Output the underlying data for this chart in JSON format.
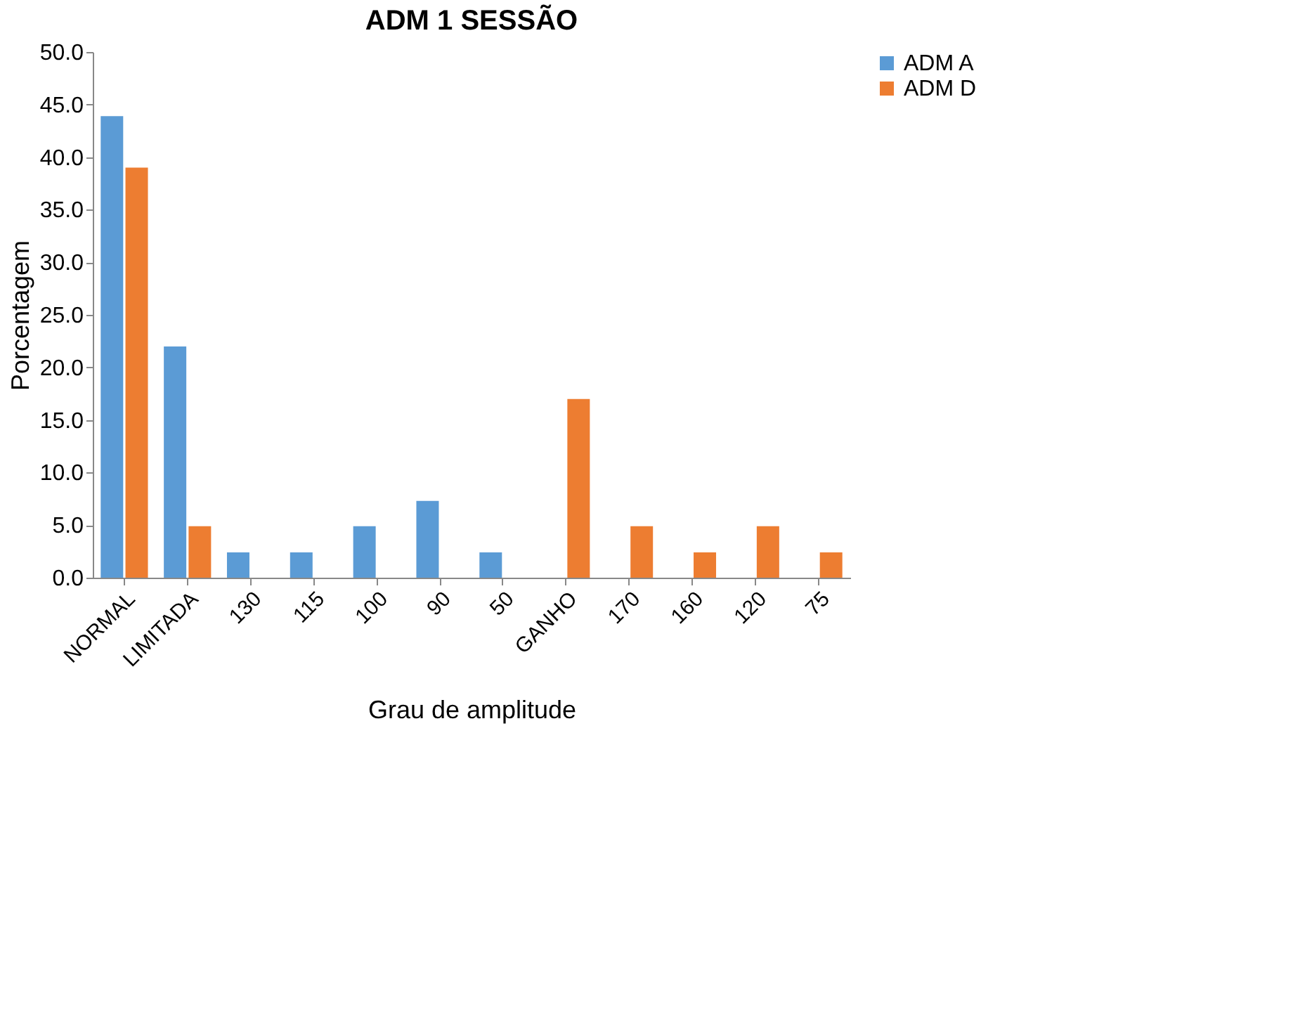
{
  "chart_data": {
    "type": "bar",
    "title": "ADM 1 SESSÃO",
    "xlabel": "Grau de amplitude",
    "ylabel": "Porcentagem",
    "categories": [
      "NORMAL",
      "LIMITADA",
      "130",
      "115",
      "100",
      "90",
      "50",
      "GANHO",
      "170",
      "160",
      "120",
      "75"
    ],
    "series": [
      {
        "name": "ADM A",
        "color": "#5b9bd5",
        "values": [
          43.9,
          22.0,
          2.4,
          2.4,
          4.9,
          7.3,
          2.4,
          null,
          null,
          null,
          null,
          null
        ]
      },
      {
        "name": "ADM D",
        "color": "#ed7d31",
        "values": [
          39.0,
          4.9,
          null,
          null,
          null,
          null,
          null,
          17.0,
          4.9,
          2.4,
          4.9,
          2.4
        ]
      }
    ],
    "ylim": [
      0,
      50
    ],
    "yticks": [
      {
        "value": 0,
        "label": "0.0"
      },
      {
        "value": 5,
        "label": "5.0"
      },
      {
        "value": 10,
        "label": "10.0"
      },
      {
        "value": 15,
        "label": "15.0"
      },
      {
        "value": 20,
        "label": "20.0"
      },
      {
        "value": 25,
        "label": "25.0"
      },
      {
        "value": 30,
        "label": "30.0"
      },
      {
        "value": 35,
        "label": "35.0"
      },
      {
        "value": 40,
        "label": "40.0"
      },
      {
        "value": 45,
        "label": "45.0"
      },
      {
        "value": 50,
        "label": "50.0"
      }
    ],
    "grid": false,
    "legend": "right"
  }
}
